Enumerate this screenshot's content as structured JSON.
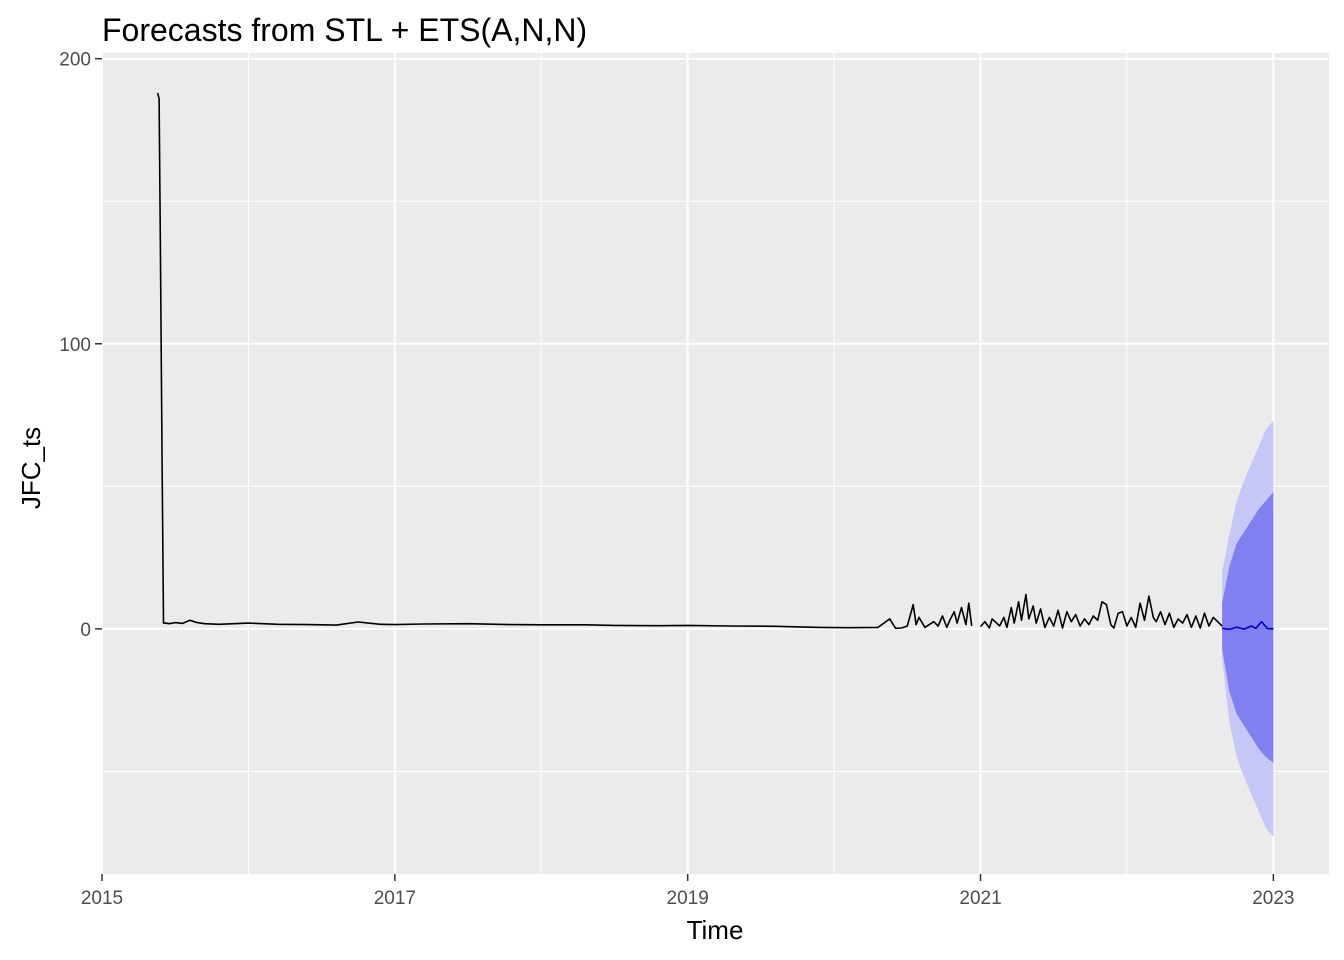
{
  "chart_data": {
    "type": "line",
    "title": "Forecasts from STL +  ETS(A,N,N)",
    "xlabel": "Time",
    "ylabel": "JFC_ts",
    "xlim": [
      2015.0,
      2023.38
    ],
    "ylim": [
      -86,
      202
    ],
    "x_ticks": [
      2015,
      2017,
      2019,
      2021,
      2023
    ],
    "x_tick_labels": [
      "2015",
      "2017",
      "2019",
      "2021",
      "2023"
    ],
    "y_ticks": [
      0,
      100,
      200
    ],
    "y_tick_labels": [
      "0",
      "100",
      "200"
    ],
    "grid": true,
    "legend": "none",
    "colors": {
      "panel": "#ebebeb",
      "grid": "#ffffff",
      "series": "#000000",
      "forecast": "#0000cc",
      "band80": "#8080f0",
      "band95": "#c6c6f7"
    },
    "series": [
      {
        "x": [
          2015.38,
          2015.39,
          2015.4,
          2015.41,
          2015.42,
          2015.43,
          2015.46,
          2015.5,
          2015.55,
          2015.6,
          2015.65,
          2015.7,
          2015.8,
          2015.9,
          2016.0,
          2016.2,
          2016.4,
          2016.6,
          2016.75,
          2016.9,
          2017.0,
          2017.2,
          2017.5,
          2017.8,
          2018.0,
          2018.3,
          2018.5,
          2018.8,
          2019.0,
          2019.3,
          2019.6,
          2019.9,
          2020.1,
          2020.3,
          2020.38,
          2020.42,
          2020.46,
          2020.5,
          2020.54,
          2020.56,
          2020.58,
          2020.62,
          2020.65,
          2020.68,
          2020.71,
          2020.74,
          2020.77,
          2020.79,
          2020.82,
          2020.84,
          2020.87,
          2020.9,
          2020.92,
          2020.94,
          2020.96,
          2021.0,
          2021.03,
          2021.06,
          2021.08,
          2021.11,
          2021.13,
          2021.16,
          2021.18,
          2021.21,
          2021.23,
          2021.26,
          2021.28,
          2021.31,
          2021.33,
          2021.36,
          2021.38,
          2021.41,
          2021.44,
          2021.47,
          2021.5,
          2021.53,
          2021.56,
          2021.59,
          2021.62,
          2021.65,
          2021.68,
          2021.71,
          2021.74,
          2021.77,
          2021.8,
          2021.83,
          2021.86,
          2021.89,
          2021.91,
          2021.94,
          2021.97,
          2022.0,
          2022.03,
          2022.06,
          2022.09,
          2022.12,
          2022.15,
          2022.18,
          2022.2,
          2022.23,
          2022.26,
          2022.29,
          2022.32,
          2022.35,
          2022.38,
          2022.41,
          2022.44,
          2022.47,
          2022.5,
          2022.53,
          2022.56,
          2022.59,
          2022.62,
          2022.65
        ],
        "values": [
          188,
          186,
          125,
          62,
          2,
          2,
          1.8,
          2.2,
          1.9,
          3,
          2.2,
          1.8,
          1.6,
          1.8,
          2,
          1.6,
          1.5,
          1.3,
          2.4,
          1.6,
          1.5,
          1.7,
          1.8,
          1.5,
          1.4,
          1.4,
          1.2,
          1.1,
          1.2,
          1.0,
          0.9,
          0.5,
          0.4,
          0.5,
          3.5,
          0.2,
          0.3,
          1.0,
          8.5,
          1.5,
          4.0,
          0.5,
          1.5,
          2.5,
          1.0,
          4.5,
          0.5,
          3.0,
          6.0,
          2.0,
          7.5,
          1.5,
          9.0,
          1.0,
          null,
          0.8,
          2.5,
          0.3,
          3.5,
          2.0,
          1.0,
          4.0,
          0.5,
          7.5,
          2.0,
          9.5,
          3.0,
          12.0,
          3.5,
          8.0,
          2.0,
          7.0,
          0.5,
          4.0,
          1.0,
          6.5,
          0.3,
          6.0,
          2.5,
          5.0,
          1.0,
          3.5,
          1.5,
          4.5,
          3.0,
          9.5,
          8.5,
          1.5,
          0.3,
          5.5,
          6.0,
          1.0,
          4.0,
          0.5,
          9.0,
          3.0,
          11.5,
          4.0,
          2.5,
          6.0,
          1.5,
          5.5,
          0.5,
          3.5,
          2.0,
          5.0,
          0.5,
          4.5,
          0.3,
          5.5,
          1.0,
          4.0,
          2.5,
          1.0
        ]
      },
      {
        "x": [
          2022.65,
          2022.7,
          2022.75,
          2022.8,
          2022.85,
          2022.88,
          2022.92,
          2022.96,
          2023.0
        ],
        "values": [
          0.2,
          -0.2,
          0.6,
          -0.1,
          1.0,
          0.2,
          2.5,
          0.1,
          0.0
        ]
      }
    ],
    "bands": {
      "x": [
        2022.65,
        2022.7,
        2022.75,
        2022.8,
        2022.85,
        2022.9,
        2022.95,
        2023.0
      ],
      "lo95": [
        -10,
        -33,
        -45,
        -52,
        -58,
        -64,
        -70,
        -73
      ],
      "hi95": [
        20,
        33,
        45,
        52,
        58,
        64,
        70,
        73
      ],
      "lo80": [
        -7,
        -22,
        -30,
        -34,
        -38,
        -42,
        -45,
        -47
      ],
      "hi80": [
        9,
        22,
        30,
        34,
        38,
        42,
        45,
        48
      ]
    }
  }
}
